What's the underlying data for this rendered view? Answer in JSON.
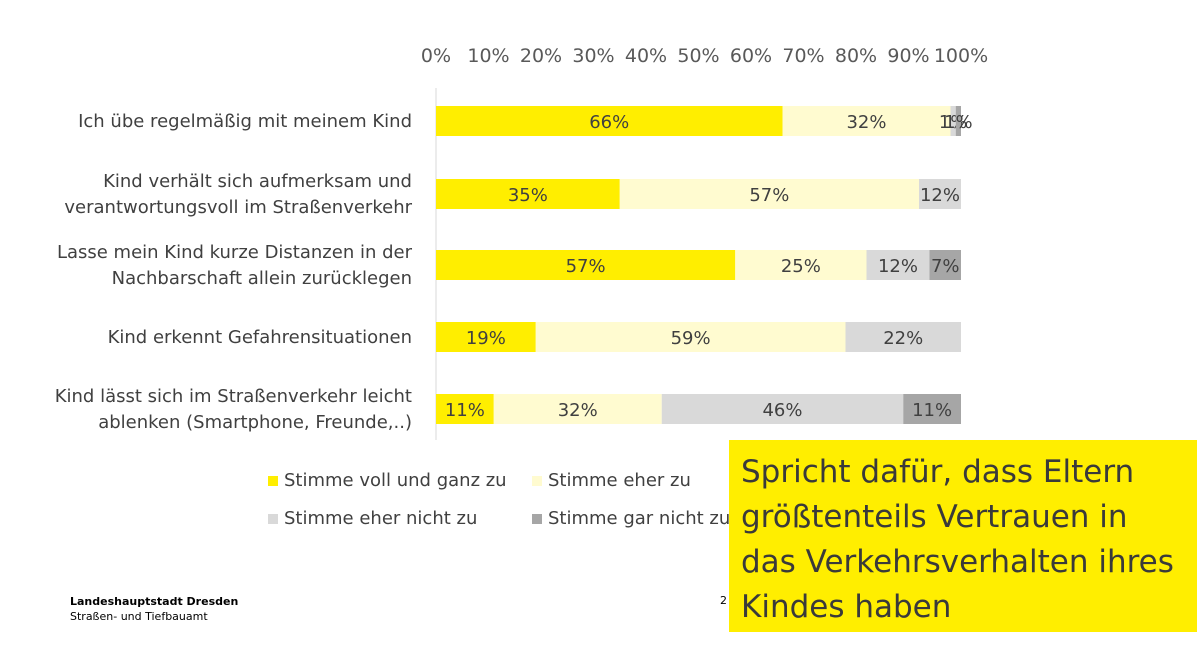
{
  "chart_data": {
    "type": "bar",
    "stacked": true,
    "orientation": "horizontal",
    "percent_axis": true,
    "xlim": [
      0,
      100
    ],
    "x_ticks": [
      "0%",
      "10%",
      "20%",
      "30%",
      "40%",
      "50%",
      "60%",
      "70%",
      "80%",
      "90%",
      "100%"
    ],
    "categories": [
      [
        "Ich übe regelmäßig mit meinem Kind"
      ],
      [
        "Kind verhält sich aufmerksam und",
        "verantwortungsvoll im Straßenverkehr"
      ],
      [
        "Lasse mein Kind kurze Distanzen in der",
        "Nachbarschaft allein zurücklegen"
      ],
      [
        "Kind erkennt Gefahrensituationen"
      ],
      [
        "Kind lässt sich im Straßenverkehr leicht",
        "ablenken (Smartphone, Freunde,..)"
      ]
    ],
    "series": [
      {
        "name": "Stimme voll und ganz zu",
        "color": "#ffee00",
        "values": [
          66,
          35,
          57,
          19,
          11
        ],
        "labels": [
          "66%",
          "35%",
          "57%",
          "19%",
          "11%"
        ]
      },
      {
        "name": "Stimme eher zu",
        "color": "#fffbd0",
        "values": [
          32,
          57,
          25,
          59,
          32
        ],
        "labels": [
          "32%",
          "57%",
          "25%",
          "59%",
          "32%"
        ]
      },
      {
        "name": "Stimme eher nicht zu",
        "color": "#d9d9d9",
        "values": [
          1,
          12,
          12,
          22,
          46
        ],
        "labels": [
          "1%",
          "12%",
          "12%",
          "22%",
          "46%"
        ]
      },
      {
        "name": "Stimme gar nicht zu",
        "color": "#a6a6a6",
        "values": [
          1,
          0,
          7,
          0,
          11
        ],
        "labels": [
          "1%",
          "",
          "7%",
          "",
          "11%"
        ]
      }
    ],
    "legend_position": "bottom",
    "grid": false
  },
  "footer": {
    "org": "Landeshauptstadt Dresden",
    "dept": "Straßen- und Tiefbauamt",
    "page": "2"
  },
  "callout": {
    "text": "Spricht dafür, dass Eltern größtenteils Vertrauen in das Verkehrsverhalten ihres Kindes haben",
    "color": "#ffee00"
  }
}
